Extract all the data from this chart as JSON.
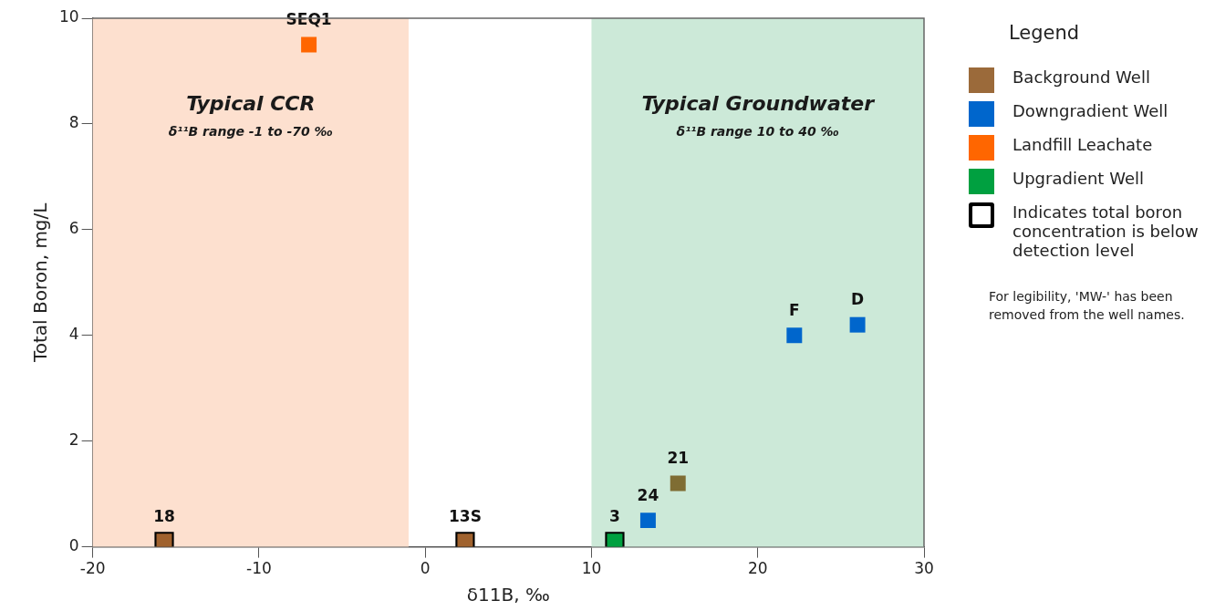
{
  "chart_data": {
    "type": "scatter",
    "xlabel": "δ11B, ‰",
    "ylabel": "Total Boron, mg/L",
    "legend_title": "Legend",
    "legend": "right",
    "marker": "square",
    "grid": false,
    "xlim": [
      -20,
      30
    ],
    "xticks": [
      -20,
      -10,
      0,
      10,
      20,
      30
    ],
    "ylim": [
      0,
      10
    ],
    "yticks": [
      0,
      2,
      4,
      6,
      8,
      10
    ],
    "series": [
      {
        "name": "Indicates total boron concentration is below detection level",
        "color": "#000000",
        "x": [
          -15.7,
          2.4,
          11.4
        ],
        "values": [
          0.1,
          0.1,
          0.1
        ]
      },
      {
        "name": "Background Well",
        "color": "#9b6a3a",
        "colors": [
          "#a0622e",
          "#a0622e",
          "#7f6d33"
        ],
        "x": [
          -15.7,
          2.4,
          15.2
        ],
        "values": [
          0.1,
          0.1,
          1.2
        ]
      },
      {
        "name": "Downgradient Well",
        "color": "#0066cc",
        "x": [
          13.4,
          22.2,
          26.0
        ],
        "values": [
          0.5,
          4.0,
          4.2
        ]
      },
      {
        "name": "Landfill Leachate",
        "color": "#ff6600",
        "x": [
          -7.0
        ],
        "values": [
          9.5
        ]
      },
      {
        "name": "Upgradient Well",
        "color": "#00a040",
        "x": [
          11.4
        ],
        "values": [
          0.1
        ]
      }
    ],
    "bands": [
      {
        "axis": "x",
        "from": -20,
        "to": -1,
        "label": "Typical CCR\nδ¹¹B range -1 to -70 ‰",
        "color": "#fde0cf"
      },
      {
        "axis": "x",
        "from": 10,
        "to": 30,
        "label": "Typical Groundwater\nδ¹¹B range 10 to 40 ‰",
        "color": "#cce9d8"
      }
    ],
    "annotations": [
      {
        "text": "18",
        "x": -15.7,
        "y": 0.1
      },
      {
        "text": "13S",
        "x": 2.4,
        "y": 0.1
      },
      {
        "text": "21",
        "x": 15.2,
        "y": 1.2
      },
      {
        "text": "24",
        "x": 13.4,
        "y": 0.5
      },
      {
        "text": "F",
        "x": 22.2,
        "y": 4.0
      },
      {
        "text": "D",
        "x": 26.0,
        "y": 4.2
      },
      {
        "text": "SEQ1",
        "x": -7.0,
        "y": 9.5
      },
      {
        "text": "3",
        "x": 11.4,
        "y": 0.1
      },
      "For legibility, 'MW-' has been removed from the well names."
    ]
  }
}
